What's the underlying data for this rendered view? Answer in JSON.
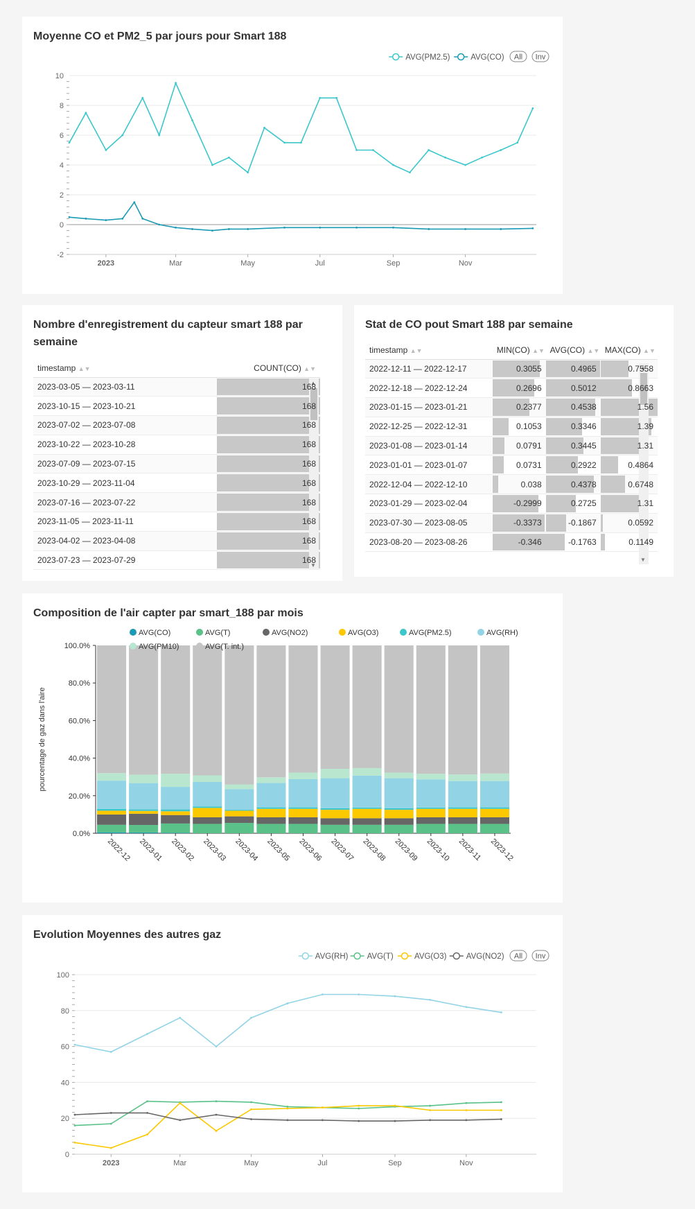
{
  "panel1": {
    "title": "Moyenne CO et PM2_5 par jours pour Smart 188",
    "legend": [
      {
        "label": "AVG(PM2.5)",
        "color": "#3bc7cc"
      },
      {
        "label": "AVG(CO)",
        "color": "#1b9ab5"
      }
    ],
    "btn_all": "All",
    "btn_inv": "Inv"
  },
  "panel2": {
    "title": "Nombre d'enregistrement du capteur smart 188 par semaine",
    "columns": [
      "timestamp",
      "COUNT(CO)"
    ],
    "rows": [
      [
        "2023-03-05 — 2023-03-11",
        "168"
      ],
      [
        "2023-10-15 — 2023-10-21",
        "168"
      ],
      [
        "2023-07-02 — 2023-07-08",
        "168"
      ],
      [
        "2023-10-22 — 2023-10-28",
        "168"
      ],
      [
        "2023-07-09 — 2023-07-15",
        "168"
      ],
      [
        "2023-10-29 — 2023-11-04",
        "168"
      ],
      [
        "2023-07-16 — 2023-07-22",
        "168"
      ],
      [
        "2023-11-05 — 2023-11-11",
        "168"
      ],
      [
        "2023-04-02 — 2023-04-08",
        "168"
      ],
      [
        "2023-07-23 — 2023-07-29",
        "168"
      ]
    ]
  },
  "panel3": {
    "title": "Stat de CO pout Smart 188 par semaine",
    "columns": [
      "timestamp",
      "MIN(CO)",
      "AVG(CO)",
      "MAX(CO)"
    ],
    "rows": [
      [
        "2022-12-11 — 2022-12-17",
        "0.3055",
        "0.4965",
        "0.7558"
      ],
      [
        "2022-12-18 — 2022-12-24",
        "0.2696",
        "0.5012",
        "0.8663"
      ],
      [
        "2023-01-15 — 2023-01-21",
        "0.2377",
        "0.4538",
        "1.56"
      ],
      [
        "2022-12-25 — 2022-12-31",
        "0.1053",
        "0.3346",
        "1.39"
      ],
      [
        "2023-01-08 — 2023-01-14",
        "0.0791",
        "0.3445",
        "1.31"
      ],
      [
        "2023-01-01 — 2023-01-07",
        "0.0731",
        "0.2922",
        "0.4864"
      ],
      [
        "2022-12-04 — 2022-12-10",
        "0.038",
        "0.4378",
        "0.6748"
      ],
      [
        "2023-01-29 — 2023-02-04",
        "-0.2999",
        "0.2725",
        "1.31"
      ],
      [
        "2023-07-30 — 2023-08-05",
        "-0.3373",
        "-0.1867",
        "0.0592"
      ],
      [
        "2023-08-20 — 2023-08-26",
        "-0.346",
        "-0.1763",
        "0.1149"
      ]
    ]
  },
  "panel4": {
    "title": "Composition de l'air capter par smart_188 par mois",
    "ylabel": "pourcentage de gaz dans l'aire",
    "legend": [
      {
        "label": "AVG(CO)",
        "color": "#1b9ab5"
      },
      {
        "label": "AVG(T)",
        "color": "#5ac189"
      },
      {
        "label": "AVG(NO2)",
        "color": "#666666"
      },
      {
        "label": "AVG(O3)",
        "color": "#fcc800"
      },
      {
        "label": "AVG(PM2.5)",
        "color": "#3bc7cc"
      },
      {
        "label": "AVG(RH)",
        "color": "#92d4e6"
      },
      {
        "label": "AVG(PM10)",
        "color": "#b8e6cf"
      },
      {
        "label": "AVG(T. int.)",
        "color": "#c4c4c4"
      }
    ]
  },
  "panel5": {
    "title": "Evolution Moyennes des autres gaz",
    "legend": [
      {
        "label": "AVG(RH)",
        "color": "#92d4e6"
      },
      {
        "label": "AVG(T)",
        "color": "#5ac189"
      },
      {
        "label": "AVG(O3)",
        "color": "#fcc800"
      },
      {
        "label": "AVG(NO2)",
        "color": "#666666"
      }
    ],
    "btn_all": "All",
    "btn_inv": "Inv"
  },
  "chart_data": [
    {
      "type": "line",
      "title": "Moyenne CO et PM2_5 par jours pour Smart 188",
      "x_ticks": [
        "2023",
        "Mar",
        "May",
        "Jul",
        "Sep",
        "Nov"
      ],
      "x_range": [
        "2022-12-01",
        "2023-12-31"
      ],
      "ylim": [
        -2,
        10
      ],
      "y_ticks": [
        -2,
        0,
        2,
        4,
        6,
        8,
        10
      ],
      "grid": true,
      "series": [
        {
          "name": "AVG(PM2.5)",
          "color": "#3bc7cc",
          "x": [
            "2022-12-01",
            "2022-12-15",
            "2023-01-01",
            "2023-01-15",
            "2023-02-01",
            "2023-02-15",
            "2023-03-01",
            "2023-03-15",
            "2023-04-01",
            "2023-04-15",
            "2023-05-01",
            "2023-05-15",
            "2023-06-01",
            "2023-06-15",
            "2023-07-01",
            "2023-07-15",
            "2023-08-01",
            "2023-08-15",
            "2023-09-01",
            "2023-09-15",
            "2023-10-01",
            "2023-10-15",
            "2023-11-01",
            "2023-11-15",
            "2023-12-01",
            "2023-12-15",
            "2023-12-28"
          ],
          "values": [
            5.5,
            7.5,
            5.0,
            6.0,
            8.5,
            6.0,
            9.5,
            7.0,
            4.0,
            4.5,
            3.5,
            6.5,
            5.5,
            5.5,
            8.5,
            8.5,
            5.0,
            5.0,
            4.0,
            3.5,
            5.0,
            4.5,
            4.0,
            4.5,
            5.0,
            5.5,
            7.8
          ]
        },
        {
          "name": "AVG(CO)",
          "color": "#1b9ab5",
          "x": [
            "2022-12-01",
            "2022-12-15",
            "2023-01-01",
            "2023-01-15",
            "2023-01-25",
            "2023-02-01",
            "2023-02-15",
            "2023-03-01",
            "2023-03-15",
            "2023-04-01",
            "2023-04-15",
            "2023-05-01",
            "2023-06-01",
            "2023-07-01",
            "2023-08-01",
            "2023-09-01",
            "2023-10-01",
            "2023-11-01",
            "2023-12-01",
            "2023-12-28"
          ],
          "values": [
            0.5,
            0.4,
            0.3,
            0.4,
            1.5,
            0.4,
            0.0,
            -0.2,
            -0.3,
            -0.4,
            -0.3,
            -0.3,
            -0.2,
            -0.2,
            -0.2,
            -0.2,
            -0.3,
            -0.3,
            -0.3,
            -0.25
          ]
        }
      ]
    },
    {
      "type": "bar",
      "stacked": "percent",
      "title": "Composition de l'air capter par smart_188 par mois",
      "ylabel": "pourcentage de gaz dans l'aire",
      "ylim": [
        0,
        100
      ],
      "y_ticks": [
        "0.0%",
        "20.0%",
        "40.0%",
        "60.0%",
        "80.0%",
        "100.0%"
      ],
      "categories": [
        "2022-12",
        "2023-01",
        "2023-02",
        "2023-03",
        "2023-04",
        "2023-05",
        "2023-06",
        "2023-07",
        "2023-08",
        "2023-09",
        "2023-10",
        "2023-11",
        "2023-12"
      ],
      "series": [
        {
          "name": "AVG(CO)",
          "values": [
            0.5,
            0.4,
            0.2,
            0.0,
            0.0,
            0.0,
            0.0,
            0.0,
            0.0,
            0.0,
            0.0,
            0.0,
            0.0
          ]
        },
        {
          "name": "AVG(T)",
          "values": [
            4,
            4,
            5,
            5,
            5.5,
            5,
            5,
            4.5,
            4.5,
            4.5,
            5,
            5,
            5
          ]
        },
        {
          "name": "AVG(NO2)",
          "values": [
            5.5,
            6,
            4.5,
            3.5,
            3.5,
            3.5,
            3.5,
            3.5,
            3.5,
            3.5,
            3.5,
            3.5,
            3.5
          ]
        },
        {
          "name": "AVG(O3)",
          "values": [
            2,
            1.5,
            2,
            5,
            3,
            4.5,
            4.5,
            4.5,
            5,
            4.5,
            4.5,
            4.5,
            4.5
          ]
        },
        {
          "name": "AVG(PM2.5)",
          "values": [
            1,
            0.8,
            1,
            0.8,
            0.5,
            0.8,
            0.8,
            0.8,
            0.7,
            0.8,
            0.7,
            0.8,
            0.8
          ]
        },
        {
          "name": "AVG(RH)",
          "values": [
            15,
            14,
            12,
            13,
            11,
            13,
            15,
            16,
            17,
            16,
            15,
            14,
            14
          ]
        },
        {
          "name": "AVG(PM10)",
          "values": [
            4,
            4.5,
            7,
            3.5,
            2.5,
            3,
            3.5,
            5,
            4,
            3,
            3,
            3.5,
            4
          ]
        },
        {
          "name": "AVG(T. int.)",
          "values": [
            68,
            68.8,
            68.3,
            69.2,
            74,
            70.2,
            67.7,
            65.7,
            65.3,
            67.7,
            68.3,
            68.7,
            68.2
          ]
        }
      ]
    },
    {
      "type": "line",
      "title": "Evolution Moyennes des autres gaz",
      "x_ticks": [
        "2023",
        "Mar",
        "May",
        "Jul",
        "Sep",
        "Nov"
      ],
      "x": [
        "2022-12-01",
        "2023-01-01",
        "2023-02-01",
        "2023-03-01",
        "2023-04-01",
        "2023-05-01",
        "2023-06-01",
        "2023-07-01",
        "2023-08-01",
        "2023-09-01",
        "2023-10-01",
        "2023-11-01",
        "2023-12-01"
      ],
      "ylim": [
        0,
        100
      ],
      "y_ticks": [
        0,
        20,
        40,
        60,
        80,
        100
      ],
      "grid": true,
      "series": [
        {
          "name": "AVG(RH)",
          "color": "#92d4e6",
          "values": [
            61,
            57,
            67,
            76,
            60,
            76,
            84,
            89,
            89,
            88,
            86,
            82,
            79
          ]
        },
        {
          "name": "AVG(T)",
          "color": "#5ac189",
          "values": [
            16,
            17,
            29.5,
            29,
            29.5,
            29,
            26.5,
            26,
            25.5,
            26.5,
            27,
            28.5,
            29
          ]
        },
        {
          "name": "AVG(O3)",
          "color": "#fcc800",
          "values": [
            6.5,
            3.5,
            11,
            28.5,
            13,
            25,
            25.5,
            26,
            27,
            27,
            24.5,
            24.5,
            24.5
          ]
        },
        {
          "name": "AVG(NO2)",
          "color": "#666666",
          "values": [
            22,
            23,
            23,
            19,
            22,
            19.5,
            19,
            19,
            18.5,
            18.5,
            19,
            19,
            19.5
          ]
        }
      ]
    }
  ]
}
